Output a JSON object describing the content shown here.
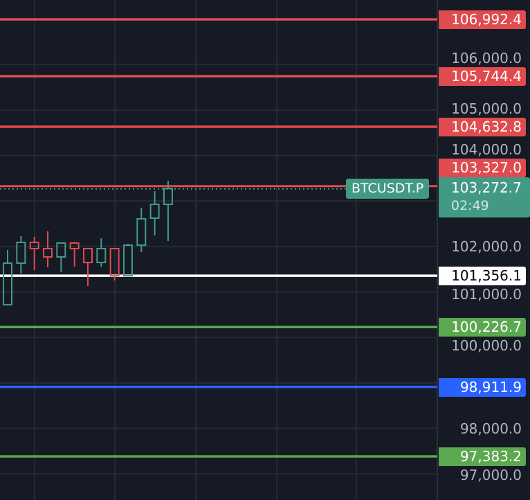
{
  "symbol": "BTCUSDT.P",
  "last_price": "103,272.7",
  "countdown": "02:49",
  "colors": {
    "bg": "#161a25",
    "grid": "#262a35",
    "up": "#429a85",
    "down": "#e04b4f",
    "green_line": "#5ba84f",
    "blue_line": "#2962ff",
    "white_line": "#ffffff",
    "axis_text": "#b2b5be"
  },
  "chart_data": {
    "type": "candlestick",
    "y_axis": {
      "ticks": [
        {
          "value": 106000,
          "label": "106,000.0"
        },
        {
          "value": 105000,
          "label": "105,000.0"
        },
        {
          "value": 104000,
          "label": "104,000.0"
        },
        {
          "value": 102000,
          "label": "102,000.0"
        },
        {
          "value": 101000,
          "label": "101,000.0"
        },
        {
          "value": 100000,
          "label": "100,000.0"
        },
        {
          "value": 98000,
          "label": "98,000.0"
        },
        {
          "value": 97000,
          "label": "97,000.0"
        }
      ],
      "ylim": [
        96500,
        107400
      ]
    },
    "price_lines": [
      {
        "value": 106992.4,
        "label": "106,992.4",
        "color": "#e04b4f"
      },
      {
        "value": 105744.4,
        "label": "105,744.4",
        "color": "#e04b4f"
      },
      {
        "value": 104632.8,
        "label": "104,632.8",
        "color": "#e04b4f"
      },
      {
        "value": 103327.0,
        "label": "103,327.0",
        "color": "#e04b4f",
        "dotted": true
      },
      {
        "value": 101356.1,
        "label": "101,356.1",
        "color": "#ffffff",
        "text_color": "#000000"
      },
      {
        "value": 100226.7,
        "label": "100,226.7",
        "color": "#5ba84f"
      },
      {
        "value": 98911.9,
        "label": "98,911.9",
        "color": "#2962ff"
      },
      {
        "value": 97383.2,
        "label": "97,383.2",
        "color": "#5ba84f"
      }
    ],
    "candles": [
      {
        "o": 100718,
        "h": 101921,
        "l": 100718,
        "c": 101632
      },
      {
        "o": 101632,
        "h": 102226,
        "l": 101403,
        "c": 102089
      },
      {
        "o": 102089,
        "h": 102211,
        "l": 101480,
        "c": 101952
      },
      {
        "o": 101952,
        "h": 102333,
        "l": 101541,
        "c": 101769
      },
      {
        "o": 101769,
        "h": 102089,
        "l": 101434,
        "c": 102074
      },
      {
        "o": 102074,
        "h": 102104,
        "l": 101556,
        "c": 101952
      },
      {
        "o": 101952,
        "h": 101952,
        "l": 101130,
        "c": 101647
      },
      {
        "o": 101647,
        "h": 102180,
        "l": 101556,
        "c": 101952
      },
      {
        "o": 101952,
        "h": 101952,
        "l": 101251,
        "c": 101356
      },
      {
        "o": 101356,
        "h": 102058,
        "l": 101356,
        "c": 102028
      },
      {
        "o": 102028,
        "h": 102850,
        "l": 101876,
        "c": 102607
      },
      {
        "o": 102622,
        "h": 103216,
        "l": 102241,
        "c": 102926
      },
      {
        "o": 102926,
        "h": 103444,
        "l": 102120,
        "c": 103272.7
      }
    ]
  }
}
